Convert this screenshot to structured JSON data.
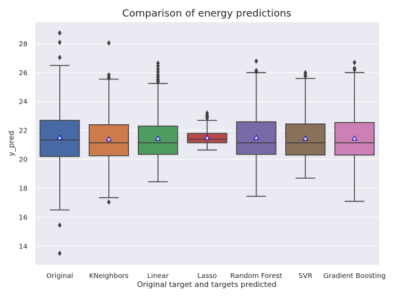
{
  "chart_data": {
    "type": "box",
    "title": "Comparison of energy predictions",
    "xlabel": "Original target and targets predicted",
    "ylabel": "y_pred",
    "ylim": [
      12.7,
      29.5
    ],
    "yticks": [
      14,
      16,
      18,
      20,
      22,
      24,
      26,
      28
    ],
    "grid": true,
    "mean_marker": "triangle",
    "categories": [
      "Original",
      "KNeighbors",
      "Linear",
      "Lasso",
      "Random Forest",
      "SVR",
      "Gradient Boosting"
    ],
    "boxes": [
      {
        "name": "Original",
        "color": "#4c72b0",
        "whislo": 16.5,
        "q1": 20.2,
        "median": 21.35,
        "q3": 22.7,
        "whishi": 26.5,
        "mean": 21.5,
        "fliers": [
          28.75,
          28.1,
          27.05,
          15.45,
          13.5
        ]
      },
      {
        "name": "KNeighbors",
        "color": "#dd8452",
        "whislo": 17.35,
        "q1": 20.25,
        "median": 21.15,
        "q3": 22.4,
        "whishi": 25.55,
        "mean": 21.4,
        "fliers": [
          28.05,
          25.85,
          25.7,
          25.6,
          17.05
        ]
      },
      {
        "name": "Linear",
        "color": "#55a868",
        "whislo": 18.45,
        "q1": 20.35,
        "median": 21.15,
        "q3": 22.3,
        "whishi": 25.25,
        "mean": 21.45,
        "fliers": [
          26.65,
          26.45,
          26.25,
          26.05,
          25.85,
          25.7,
          25.55,
          25.45,
          25.35
        ]
      },
      {
        "name": "Lasso",
        "color": "#c44e52",
        "whislo": 20.65,
        "q1": 21.15,
        "median": 21.4,
        "q3": 21.8,
        "whishi": 22.7,
        "mean": 21.5,
        "fliers": [
          23.2,
          23.05,
          22.95,
          22.85
        ]
      },
      {
        "name": "Random Forest",
        "color": "#8172b3",
        "whislo": 17.45,
        "q1": 20.35,
        "median": 21.15,
        "q3": 22.6,
        "whishi": 26.0,
        "mean": 21.5,
        "fliers": [
          26.8,
          26.15,
          26.05
        ]
      },
      {
        "name": "SVR",
        "color": "#937860",
        "whislo": 18.7,
        "q1": 20.3,
        "median": 21.15,
        "q3": 22.45,
        "whishi": 25.6,
        "mean": 21.45,
        "fliers": [
          26.0,
          25.85,
          25.75
        ]
      },
      {
        "name": "Gradient Boosting",
        "color": "#da8bc3",
        "whislo": 17.1,
        "q1": 20.3,
        "median": 21.15,
        "q3": 22.55,
        "whishi": 26.0,
        "mean": 21.45,
        "fliers": [
          26.7,
          26.3,
          26.2
        ]
      }
    ]
  }
}
